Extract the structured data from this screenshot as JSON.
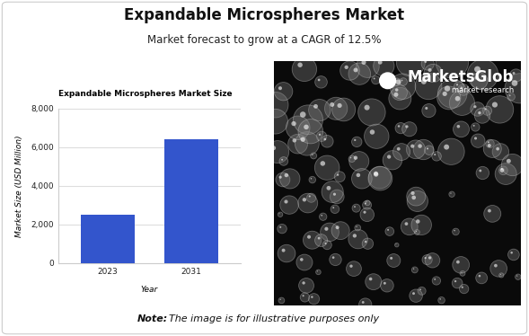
{
  "header": {
    "title": "Expandable Microspheres Market",
    "subtitle": "Market forecast to grow at a CAGR of 12.5%"
  },
  "chart_data": {
    "type": "bar",
    "title": "Expandable Microspheres Market Size",
    "categories": [
      "2023",
      "2031"
    ],
    "values": [
      2500,
      6400
    ],
    "color": "#3355cc",
    "x_label": "Year",
    "y_label": "Market Size (USD Million)",
    "ylim": [
      0,
      8000
    ],
    "yticks": [
      0,
      {
        "value": 2000,
        "label": "2,000"
      },
      {
        "value": 4000,
        "label": "4,000"
      },
      {
        "value": 6000,
        "label": "6,000"
      },
      {
        "value": 8000,
        "label": "8,000"
      }
    ],
    "grid": true
  },
  "logo": {
    "name": "MarketsGlob",
    "tagline": "market research"
  },
  "note": {
    "label": "Note:",
    "text": "The image is for illustrative purposes only"
  }
}
